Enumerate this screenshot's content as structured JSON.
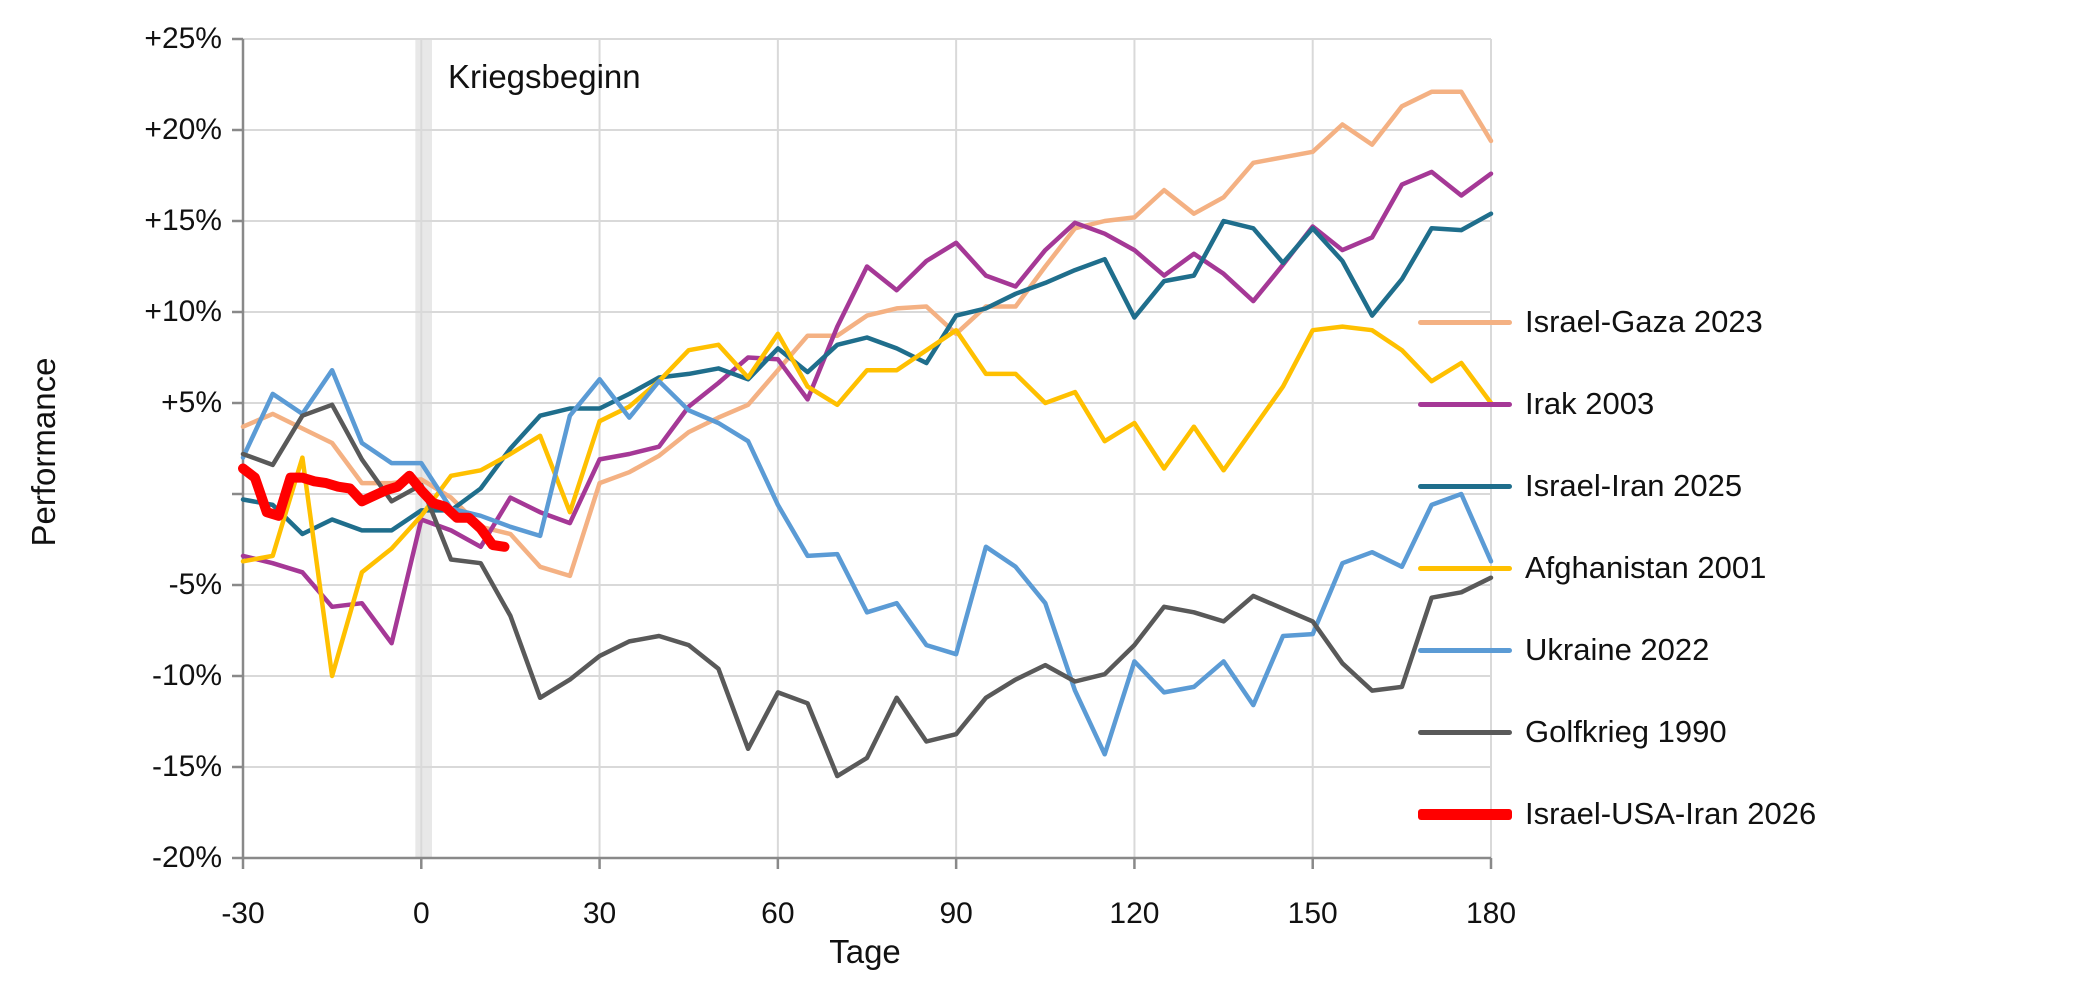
{
  "chart_data": {
    "type": "line",
    "title": "",
    "xlabel": "Tage",
    "ylabel": "Performance",
    "annotation_label": "Kriegsbeginn",
    "xlim": [
      -30,
      180
    ],
    "ylim": [
      -20,
      25
    ],
    "grid": true,
    "legend_position": "right",
    "x_ticks": [
      -30,
      0,
      30,
      60,
      90,
      120,
      150,
      180
    ],
    "x_tick_labels": [
      "-30",
      "0",
      "30",
      "60",
      "90",
      "120",
      "150",
      "180"
    ],
    "y_ticks": [
      25,
      20,
      15,
      10,
      5,
      0,
      -5,
      -10,
      -15,
      -20
    ],
    "y_tick_labels": [
      "+25%",
      "+20%",
      "+15%",
      "+10%",
      "+5%",
      "",
      "-5%",
      "-10%",
      "-15%",
      "-20%"
    ],
    "event_band": {
      "label": "Kriegsbeginn",
      "from_day": -1,
      "to_day": 1.8
    },
    "x": [
      -30,
      -25,
      -20,
      -15,
      -10,
      -5,
      0,
      5,
      10,
      15,
      20,
      25,
      30,
      35,
      40,
      45,
      50,
      55,
      60,
      65,
      70,
      75,
      80,
      85,
      90,
      95,
      100,
      105,
      110,
      115,
      120,
      125,
      130,
      135,
      140,
      145,
      150,
      155,
      160,
      165,
      170,
      175,
      180
    ],
    "series": [
      {
        "name": "Israel-Gaza 2023",
        "color": "#F4B183",
        "width": 4.5,
        "values": [
          3.7,
          4.4,
          3.6,
          2.8,
          0.6,
          0.6,
          0.8,
          -0.2,
          -1.8,
          -2.2,
          -4.0,
          -4.5,
          0.6,
          1.2,
          2.1,
          3.4,
          4.2,
          4.9,
          6.8,
          8.7,
          8.7,
          9.8,
          10.2,
          10.3,
          8.8,
          10.3,
          10.3,
          12.5,
          14.6,
          15.0,
          15.2,
          16.7,
          15.4,
          16.3,
          18.2,
          18.5,
          18.8,
          20.3,
          19.2,
          21.3,
          22.1,
          22.1,
          19.4
        ]
      },
      {
        "name": "Irak 2003",
        "color": "#A53896",
        "width": 4.5,
        "values": [
          -3.4,
          -3.8,
          -4.3,
          -6.2,
          -6.0,
          -8.2,
          -1.4,
          -2.0,
          -2.9,
          -0.2,
          -1.0,
          -1.6,
          1.9,
          2.2,
          2.6,
          4.8,
          6.1,
          7.5,
          7.4,
          5.2,
          9.2,
          12.5,
          11.2,
          12.8,
          13.8,
          12.0,
          11.4,
          13.4,
          14.9,
          14.3,
          13.4,
          12.0,
          13.2,
          12.1,
          10.6,
          12.6,
          14.7,
          13.4,
          14.1,
          17.0,
          17.7,
          16.4,
          17.6
        ]
      },
      {
        "name": "Israel-Iran 2025",
        "color": "#1F6E8C",
        "width": 4.5,
        "values": [
          -0.3,
          -0.6,
          -2.2,
          -1.4,
          -2.0,
          -2.0,
          -0.9,
          -0.9,
          0.3,
          2.5,
          4.3,
          4.7,
          4.7,
          5.5,
          6.4,
          6.6,
          6.9,
          6.3,
          8.0,
          6.7,
          8.2,
          8.6,
          8.0,
          7.2,
          9.8,
          10.2,
          11.0,
          11.6,
          12.3,
          12.9,
          9.7,
          11.7,
          12.0,
          15.0,
          14.6,
          12.7,
          14.6,
          12.8,
          9.8,
          11.8,
          14.6,
          14.5,
          15.4
        ]
      },
      {
        "name": "Afghanistan 2001",
        "color": "#FFC000",
        "width": 4.5,
        "values": [
          -3.7,
          -3.4,
          2.0,
          -10.0,
          -4.3,
          -3.0,
          -1.2,
          1.0,
          1.3,
          2.2,
          3.2,
          -1.0,
          4.0,
          4.8,
          6.2,
          7.9,
          8.2,
          6.4,
          8.8,
          5.9,
          4.9,
          6.8,
          6.8,
          7.9,
          9.0,
          6.6,
          6.6,
          5.0,
          5.6,
          2.9,
          3.9,
          1.4,
          3.7,
          1.3,
          3.6,
          5.9,
          9.0,
          9.2,
          9.0,
          7.9,
          6.2,
          7.2,
          5.0
        ]
      },
      {
        "name": "Ukraine 2022",
        "color": "#5B9BD5",
        "width": 4.5,
        "values": [
          2.0,
          5.5,
          4.4,
          6.8,
          2.8,
          1.7,
          1.7,
          -0.8,
          -1.2,
          -1.8,
          -2.3,
          4.3,
          6.3,
          4.2,
          6.2,
          4.6,
          3.9,
          2.9,
          -0.6,
          -3.4,
          -3.3,
          -6.5,
          -6.0,
          -8.3,
          -8.8,
          -2.9,
          -4.0,
          -6.0,
          -10.8,
          -14.3,
          -9.2,
          -10.9,
          -10.6,
          -9.2,
          -11.6,
          -7.8,
          -7.7,
          -3.8,
          -3.2,
          -4.0,
          -0.6,
          0.0,
          -3.7
        ]
      },
      {
        "name": "Golfkrieg 1990",
        "color": "#595959",
        "width": 4.5,
        "values": [
          2.2,
          1.6,
          4.3,
          4.9,
          1.9,
          -0.4,
          0.5,
          -3.6,
          -3.8,
          -6.7,
          -11.2,
          -10.2,
          -8.9,
          -8.1,
          -7.8,
          -8.3,
          -9.6,
          -14.0,
          -10.9,
          -11.5,
          -15.5,
          -14.5,
          -11.2,
          -13.6,
          -13.2,
          -11.2,
          -10.2,
          -9.4,
          -10.3,
          -9.9,
          -8.3,
          -6.2,
          -6.5,
          -7.0,
          -5.6,
          -6.3,
          -7.0,
          -9.3,
          -10.8,
          -10.6,
          -5.7,
          -5.4,
          -4.6
        ]
      },
      {
        "name": "Israel-USA-Iran 2026",
        "color": "#FF0000",
        "width": 10,
        "x": [
          -30,
          -28,
          -26,
          -24,
          -22,
          -20,
          -18,
          -16,
          -14,
          -12,
          -10,
          -8,
          -6,
          -4,
          -2,
          0,
          2,
          4,
          6,
          8,
          10,
          12,
          14
        ],
        "values": [
          1.4,
          0.9,
          -1.0,
          -1.2,
          0.9,
          0.9,
          0.7,
          0.6,
          0.4,
          0.3,
          -0.4,
          -0.1,
          0.2,
          0.4,
          1.0,
          0.2,
          -0.5,
          -0.7,
          -1.3,
          -1.3,
          -1.9,
          -2.8,
          -2.9
        ]
      }
    ]
  },
  "style": {
    "grid_color": "#D9D9D9",
    "axis_color": "#898989",
    "band_color": "#E8E8E8",
    "text_color": "#111111",
    "background": "#FFFFFF"
  }
}
